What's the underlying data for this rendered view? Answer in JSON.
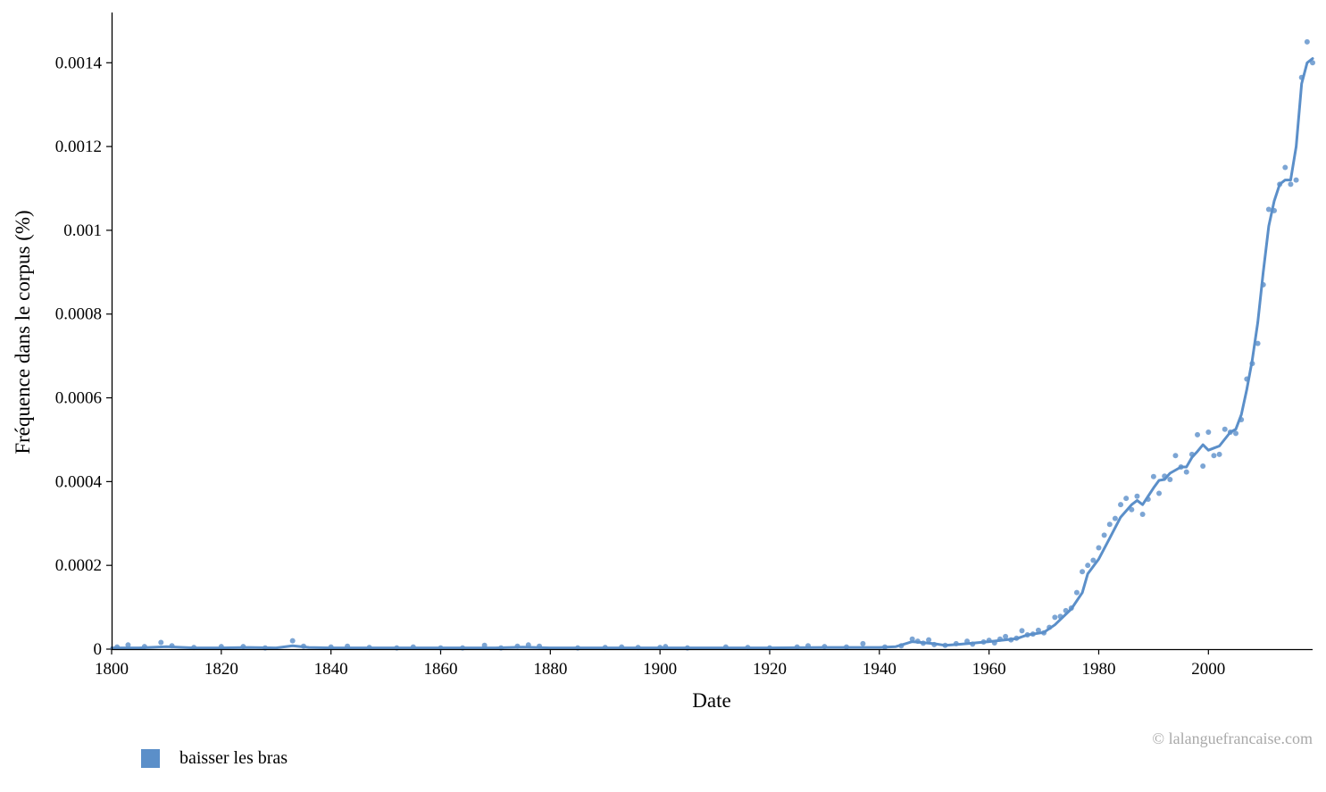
{
  "chart_data": {
    "type": "line",
    "xlabel": "Date",
    "ylabel": "Fréquence dans le corpus (%)",
    "xlim": [
      1800,
      2019
    ],
    "ylim": [
      0,
      0.00152
    ],
    "xticks": [
      1800,
      1820,
      1840,
      1860,
      1880,
      1900,
      1920,
      1940,
      1960,
      1980,
      2000
    ],
    "yticks": [
      0,
      0.0002,
      0.0004,
      0.0006,
      0.0008,
      0.001,
      0.0012,
      0.0014
    ],
    "ytick_labels": [
      "0",
      "0.0002",
      "0.0004",
      "0.0006",
      "0.0008",
      "0.001",
      "0.0012",
      "0.0014"
    ],
    "grid": false,
    "legend_position": "bottom-left",
    "color": "#5b8fc9",
    "series": [
      {
        "name": "baisser les bras",
        "smoothed": {
          "x": [
            1800,
            1805,
            1810,
            1815,
            1820,
            1825,
            1830,
            1833,
            1836,
            1840,
            1850,
            1860,
            1870,
            1875,
            1880,
            1890,
            1900,
            1910,
            1920,
            1930,
            1938,
            1940,
            1943,
            1946,
            1950,
            1952,
            1955,
            1960,
            1965,
            1967,
            1970,
            1972,
            1975,
            1977,
            1978,
            1980,
            1982,
            1984,
            1986,
            1987,
            1988,
            1990,
            1991,
            1992,
            1993,
            1995,
            1996,
            1997,
            1998,
            1999,
            2000,
            2001,
            2002,
            2004,
            2005,
            2006,
            2007,
            2008,
            2009,
            2010,
            2011,
            2012,
            2013,
            2014,
            2015,
            2016,
            2017,
            2018,
            2019
          ],
          "y": [
            3e-06,
            3e-06,
            6e-06,
            3e-06,
            3e-06,
            4e-06,
            3e-06,
            8e-06,
            4e-06,
            3e-06,
            3e-06,
            3e-06,
            3e-06,
            5e-06,
            3e-06,
            3e-06,
            3e-06,
            3e-06,
            3e-06,
            4e-06,
            4e-06,
            4e-06,
            6e-06,
            1.8e-05,
            1.3e-05,
            9e-06,
            1.2e-05,
            1.8e-05,
            2.5e-05,
            3.4e-05,
            4e-05,
            5.8e-05,
            9.6e-05,
            0.000135,
            0.00018,
            0.000215,
            0.000265,
            0.000315,
            0.000345,
            0.000355,
            0.000345,
            0.000385,
            0.000403,
            0.000405,
            0.00042,
            0.000435,
            0.000435,
            0.000458,
            0.000472,
            0.000488,
            0.000475,
            0.00048,
            0.000485,
            0.000518,
            0.000525,
            0.00056,
            0.00062,
            0.00069,
            0.00078,
            0.0009,
            0.00101,
            0.00107,
            0.00111,
            0.00112,
            0.00112,
            0.0012,
            0.00135,
            0.0014,
            0.00141
          ]
        },
        "points": {
          "x": [
            1801,
            1803,
            1806,
            1809,
            1811,
            1815,
            1820,
            1824,
            1828,
            1833,
            1835,
            1840,
            1843,
            1847,
            1852,
            1855,
            1860,
            1864,
            1868,
            1871,
            1874,
            1876,
            1878,
            1885,
            1890,
            1893,
            1896,
            1900,
            1901,
            1905,
            1912,
            1916,
            1920,
            1925,
            1927,
            1930,
            1934,
            1937,
            1941,
            1944,
            1946,
            1947,
            1948,
            1949,
            1950,
            1952,
            1954,
            1956,
            1957,
            1959,
            1960,
            1961,
            1962,
            1963,
            1964,
            1965,
            1966,
            1967,
            1968,
            1969,
            1970,
            1971,
            1972,
            1973,
            1974,
            1975,
            1976,
            1977,
            1978,
            1979,
            1980,
            1981,
            1982,
            1983,
            1984,
            1985,
            1986,
            1987,
            1988,
            1989,
            1990,
            1991,
            1992,
            1993,
            1994,
            1995,
            1996,
            1997,
            1998,
            1999,
            2000,
            2001,
            2002,
            2003,
            2004,
            2005,
            2006,
            2007,
            2008,
            2009,
            2010,
            2011,
            2012,
            2013,
            2014,
            2015,
            2016,
            2017,
            2018,
            2019
          ],
          "y": [
            5e-06,
            1e-05,
            6e-06,
            1.6e-05,
            8e-06,
            4e-06,
            6e-06,
            6e-06,
            3e-06,
            2e-05,
            7e-06,
            5e-06,
            7e-06,
            4e-06,
            3e-06,
            5e-06,
            3e-06,
            3e-06,
            9e-06,
            3e-06,
            7e-06,
            1e-05,
            7e-06,
            3e-06,
            4e-06,
            5e-06,
            4e-06,
            4e-06,
            6e-06,
            3e-06,
            5e-06,
            4e-06,
            3e-06,
            5e-06,
            8e-06,
            6e-06,
            5e-06,
            1.3e-05,
            5e-06,
            8e-06,
            2.4e-05,
            1.9e-05,
            1.4e-05,
            2.2e-05,
            1.1e-05,
            9e-06,
            1.3e-05,
            1.9e-05,
            1.2e-05,
            1.7e-05,
            2.1e-05,
            1.5e-05,
            2.4e-05,
            3e-05,
            2.2e-05,
            2.6e-05,
            4.4e-05,
            3.4e-05,
            3.6e-05,
            4.5e-05,
            3.9e-05,
            5.2e-05,
            7.6e-05,
            7.8e-05,
            9.2e-05,
            9.8e-05,
            0.000135,
            0.000185,
            0.0002,
            0.000212,
            0.000242,
            0.000272,
            0.000298,
            0.000312,
            0.000345,
            0.00036,
            0.000333,
            0.000365,
            0.000322,
            0.000358,
            0.000412,
            0.000372,
            0.000413,
            0.000405,
            0.000462,
            0.000435,
            0.000423,
            0.000465,
            0.000512,
            0.000437,
            0.000518,
            0.000462,
            0.000465,
            0.000525,
            0.000518,
            0.000515,
            0.000548,
            0.000645,
            0.000682,
            0.00073,
            0.00087,
            0.00105,
            0.001047,
            0.00111,
            0.00115,
            0.00111,
            0.00112,
            0.001365,
            0.00145,
            0.0014
          ]
        }
      }
    ]
  },
  "legend": {
    "label": "baisser les bras"
  },
  "credit": "© lalanguefrancaise.com"
}
